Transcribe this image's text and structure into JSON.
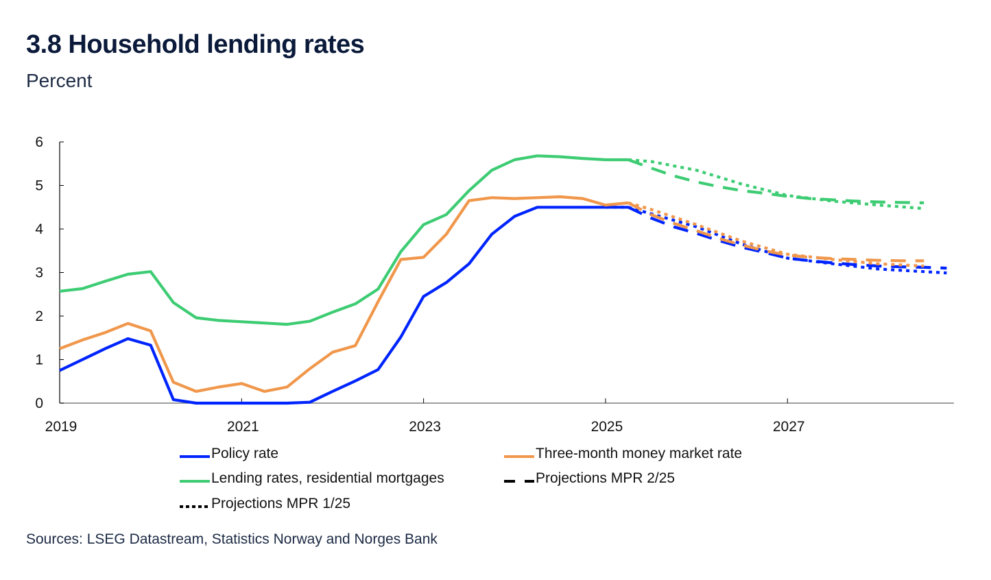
{
  "header": {
    "title": "3.8 Household lending rates",
    "subtitle": "Percent"
  },
  "sources": "Sources: LSEG Datastream, Statistics Norway and  Norges Bank",
  "colors": {
    "policy": "#0024ff",
    "money_market": "#f0974b",
    "lending": "#3dcc73",
    "axis": "#7f7f7f",
    "legend_black": "#000000"
  },
  "chart_data": {
    "type": "line",
    "title": "3.8 Household lending rates",
    "ylabel": "Percent",
    "xlabel": "",
    "ylim": [
      0,
      6
    ],
    "xlim": [
      2019,
      2028.83
    ],
    "y_ticks": [
      0,
      1,
      2,
      3,
      4,
      5,
      6
    ],
    "x_ticks": [
      2019,
      2021,
      2023,
      2025,
      2027
    ],
    "x_tick_labels": [
      "2019",
      "2021",
      "2023",
      "2025",
      "2027"
    ],
    "grid": false,
    "legend_position": "bottom",
    "legend": [
      {
        "key": "policy",
        "label": "Policy rate",
        "style": "solid",
        "color_key": "policy"
      },
      {
        "key": "money_market",
        "label": "Three-month money market rate",
        "style": "solid",
        "color_key": "money_market"
      },
      {
        "key": "lending",
        "label": "Lending rates, residential mortgages",
        "style": "solid",
        "color_key": "lending"
      },
      {
        "key": "mpr225",
        "label": "Projections MPR 2/25",
        "style": "dashed",
        "color_key": "legend_black"
      },
      {
        "key": "mpr125",
        "label": "Projections MPR 1/25",
        "style": "dotted",
        "color_key": "legend_black"
      }
    ],
    "series": [
      {
        "name": "Policy rate",
        "color_key": "policy",
        "style": "solid",
        "x": [
          2019.0,
          2019.25,
          2019.5,
          2019.75,
          2020.0,
          2020.25,
          2020.5,
          2020.75,
          2021.0,
          2021.25,
          2021.5,
          2021.75,
          2022.0,
          2022.25,
          2022.5,
          2022.75,
          2023.0,
          2023.25,
          2023.5,
          2023.75,
          2024.0,
          2024.25,
          2024.5,
          2024.75,
          2025.0,
          2025.25
        ],
        "y": [
          0.75,
          1.0,
          1.25,
          1.48,
          1.33,
          0.08,
          0.0,
          0.0,
          0.0,
          0.0,
          0.0,
          0.02,
          0.27,
          0.51,
          0.77,
          1.52,
          2.45,
          2.77,
          3.2,
          3.88,
          4.29,
          4.5,
          4.5,
          4.5,
          4.5,
          4.5
        ]
      },
      {
        "name": "Three-month money market rate",
        "color_key": "money_market",
        "style": "solid",
        "x": [
          2019.0,
          2019.25,
          2019.5,
          2019.75,
          2020.0,
          2020.25,
          2020.5,
          2020.75,
          2021.0,
          2021.25,
          2021.5,
          2021.75,
          2022.0,
          2022.25,
          2022.5,
          2022.75,
          2023.0,
          2023.25,
          2023.5,
          2023.75,
          2024.0,
          2024.25,
          2024.5,
          2024.75,
          2025.0,
          2025.25
        ],
        "y": [
          1.25,
          1.45,
          1.62,
          1.83,
          1.66,
          0.48,
          0.27,
          0.37,
          0.45,
          0.27,
          0.37,
          0.79,
          1.17,
          1.32,
          2.33,
          3.3,
          3.35,
          3.88,
          4.65,
          4.72,
          4.7,
          4.72,
          4.74,
          4.7,
          4.55,
          4.6
        ]
      },
      {
        "name": "Lending rates, residential mortgages",
        "color_key": "lending",
        "style": "solid",
        "x": [
          2019.0,
          2019.25,
          2019.5,
          2019.75,
          2020.0,
          2020.25,
          2020.5,
          2020.75,
          2021.0,
          2021.25,
          2021.5,
          2021.75,
          2022.0,
          2022.25,
          2022.5,
          2022.75,
          2023.0,
          2023.25,
          2023.5,
          2023.75,
          2024.0,
          2024.25,
          2024.5,
          2024.75,
          2025.0,
          2025.25
        ],
        "y": [
          2.57,
          2.63,
          2.8,
          2.96,
          3.02,
          2.31,
          1.96,
          1.9,
          1.87,
          1.84,
          1.81,
          1.88,
          2.09,
          2.28,
          2.62,
          3.48,
          4.1,
          4.33,
          4.88,
          5.35,
          5.59,
          5.68,
          5.66,
          5.62,
          5.59,
          5.59
        ]
      },
      {
        "name": "Policy rate – Projections MPR 2/25",
        "color_key": "policy",
        "style": "dashed",
        "x": [
          2025.25,
          2025.5,
          2025.75,
          2026.0,
          2026.25,
          2026.5,
          2026.75,
          2027.0,
          2027.25,
          2027.5,
          2027.75,
          2028.0,
          2028.25,
          2028.5,
          2028.75
        ],
        "y": [
          4.5,
          4.25,
          4.05,
          3.9,
          3.73,
          3.58,
          3.46,
          3.33,
          3.27,
          3.22,
          3.18,
          3.15,
          3.13,
          3.12,
          3.1
        ]
      },
      {
        "name": "Policy rate – Projections MPR 1/25",
        "color_key": "policy",
        "style": "dotted",
        "x": [
          2025.0,
          2025.25,
          2025.5,
          2026.0,
          2026.5,
          2027.0,
          2027.5,
          2028.0,
          2028.5,
          2028.75
        ],
        "y": [
          4.5,
          4.5,
          4.35,
          4.05,
          3.65,
          3.33,
          3.2,
          3.08,
          3.02,
          2.99
        ]
      },
      {
        "name": "Three-month – Projections MPR 2/25",
        "color_key": "money_market",
        "style": "dashed",
        "x": [
          2025.25,
          2025.5,
          2025.75,
          2026.0,
          2026.25,
          2026.5,
          2026.75,
          2027.0,
          2027.25,
          2027.5,
          2027.75,
          2028.0,
          2028.25,
          2028.5
        ],
        "y": [
          4.6,
          4.33,
          4.13,
          3.96,
          3.78,
          3.63,
          3.5,
          3.4,
          3.35,
          3.32,
          3.3,
          3.28,
          3.27,
          3.27
        ]
      },
      {
        "name": "Three-month – Projections MPR 1/25",
        "color_key": "money_market",
        "style": "dotted",
        "x": [
          2025.25,
          2025.5,
          2026.0,
          2026.5,
          2027.0,
          2027.5,
          2028.0,
          2028.5
        ],
        "y": [
          4.6,
          4.45,
          4.1,
          3.72,
          3.42,
          3.3,
          3.2,
          3.15
        ]
      },
      {
        "name": "Lending – Projections MPR 2/25",
        "color_key": "lending",
        "style": "dashed",
        "x": [
          2025.25,
          2025.5,
          2025.75,
          2026.0,
          2026.25,
          2026.5,
          2026.75,
          2027.0,
          2027.25,
          2027.5,
          2027.75,
          2028.0,
          2028.25,
          2028.5
        ],
        "y": [
          5.59,
          5.4,
          5.22,
          5.08,
          4.97,
          4.88,
          4.82,
          4.75,
          4.7,
          4.67,
          4.64,
          4.62,
          4.61,
          4.6
        ]
      },
      {
        "name": "Lending – Projections MPR 1/25",
        "color_key": "lending",
        "style": "dotted",
        "x": [
          2025.25,
          2025.5,
          2026.0,
          2026.5,
          2027.0,
          2027.5,
          2028.0,
          2028.5
        ],
        "y": [
          5.59,
          5.55,
          5.35,
          5.03,
          4.77,
          4.64,
          4.55,
          4.47
        ]
      }
    ]
  }
}
